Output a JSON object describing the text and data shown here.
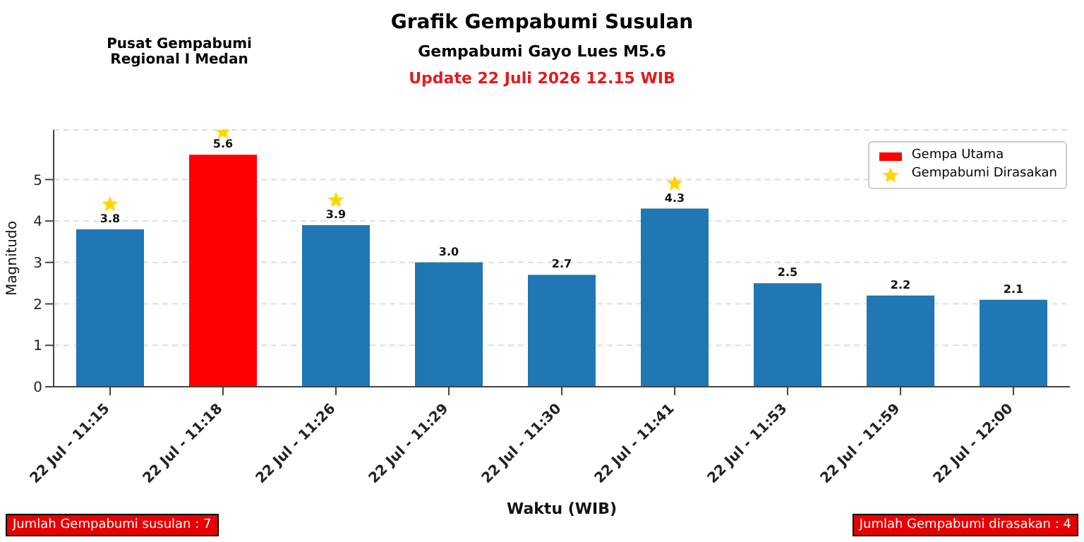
{
  "chart_data": {
    "type": "bar",
    "title": "Grafik Gempabumi Susulan",
    "subtitle": "Gempabumi Gayo Lues M5.6",
    "xlabel": "Waktu (WIB)",
    "ylabel": "Magnitudo",
    "annotations": [
      "Update 22 Juli 2026 12.15 WIB",
      "Pusat Gempabumi Regional I Medan",
      "Jumlah Gempabumi susulan : 7",
      "Jumlah Gempabumi dirasakan : 4"
    ],
    "categories": [
      "22 Jul - 11:15",
      "22 Jul - 11:18",
      "22 Jul - 11:26",
      "22 Jul - 11:29",
      "22 Jul - 11:30",
      "22 Jul - 11:41",
      "22 Jul - 11:53",
      "22 Jul - 11:59",
      "22 Jul - 12:00"
    ],
    "stacked": true,
    "series": [
      {
        "color": "#1f77b4",
        "values": [
          3.8,
          null,
          3.9,
          3.0,
          2.7,
          4.3,
          2.5,
          2.2,
          2.1
        ],
        "value_labels": [
          "3.8",
          null,
          "3.9",
          "3.0",
          "2.7",
          "4.3",
          "2.5",
          "2.2",
          "2.1"
        ]
      },
      {
        "name": "Gempa Utama",
        "color": "#ff0000",
        "values": [
          null,
          5.6,
          null,
          null,
          null,
          null,
          null,
          null,
          null
        ],
        "value_labels": [
          null,
          "5.6",
          null,
          null,
          null,
          null,
          null,
          null,
          null
        ]
      },
      {
        "type": "scatter",
        "name": "Gempabumi Dirasakan",
        "color": "#ffd700",
        "marker": "star",
        "values": [
          4.4,
          6.15,
          4.5,
          null,
          null,
          4.9,
          null,
          null,
          null
        ]
      }
    ],
    "ylim": [
      0,
      6.2
    ],
    "yticks": [
      0,
      1,
      2,
      3,
      4,
      5
    ],
    "grid": "y",
    "legend": "top right"
  }
}
